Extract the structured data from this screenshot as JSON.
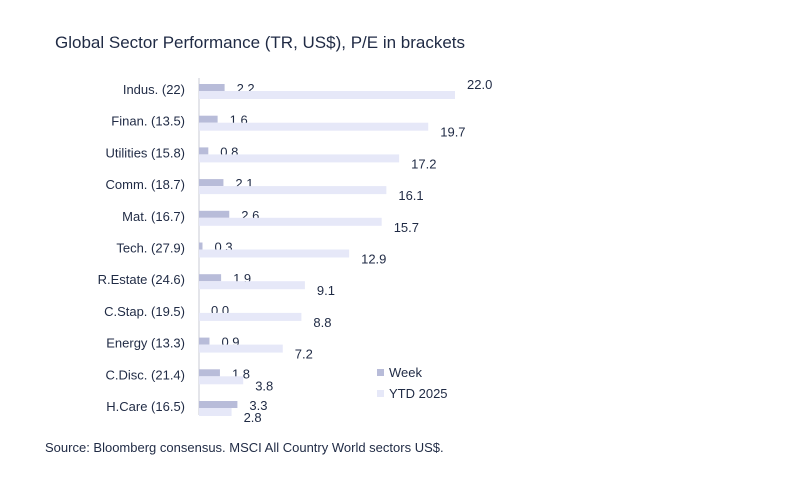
{
  "chart_data": {
    "type": "bar",
    "orientation": "horizontal",
    "title": "Global Sector Performance (TR, US$), P/E in brackets",
    "source": "Source: Bloomberg consensus. MSCI All Country World sectors US$.",
    "categories": [
      "Indus. (22)",
      "Finan. (13.5)",
      "Utilities (15.8)",
      "Comm. (18.7)",
      "Mat. (16.7)",
      "Tech. (27.9)",
      "R.Estate (24.6)",
      "C.Stap. (19.5)",
      "Energy (13.3)",
      "C.Disc. (21.4)",
      "H.Care (16.5)"
    ],
    "series": [
      {
        "name": "Week",
        "values": [
          2.2,
          1.6,
          0.8,
          2.1,
          2.6,
          0.3,
          1.9,
          0.0,
          0.9,
          1.8,
          3.3
        ],
        "labels": [
          "2.2",
          "1.6",
          "0.8",
          "2.1",
          "2.6",
          "0.3",
          "1.9",
          "0.0",
          "0.9",
          "1.8",
          "3.3"
        ],
        "color": "#b8bcd9"
      },
      {
        "name": "YTD 2025",
        "values": [
          22.0,
          19.7,
          17.2,
          16.1,
          15.7,
          12.9,
          9.1,
          8.8,
          7.2,
          3.8,
          2.8
        ],
        "labels": [
          "22.0",
          "19.7",
          "17.2",
          "16.1",
          "15.7",
          "12.9",
          "9.1",
          "8.8",
          "7.2",
          "3.8",
          "2.8"
        ],
        "color": "#e6e8f8"
      }
    ],
    "xlim": [
      0,
      22
    ],
    "grid": false,
    "legend": "bottom-right"
  }
}
